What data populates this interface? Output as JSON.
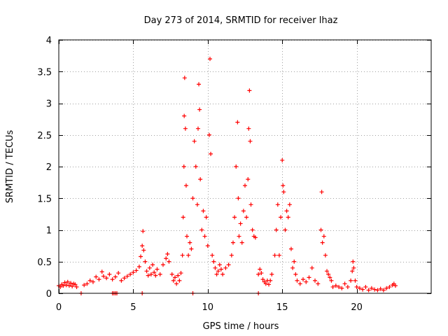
{
  "chart_data": {
    "type": "scatter",
    "title": "Day 273 of 2014, SRMTID for receiver lhaz",
    "xlabel": "GPS time / hours",
    "ylabel": "SRMTID / TECUs",
    "xlim": [
      0,
      25
    ],
    "ylim": [
      0,
      4
    ],
    "xticks": [
      0,
      5,
      10,
      15,
      20
    ],
    "xtick_labels": [
      "0",
      "5",
      "10",
      "15",
      "20"
    ],
    "yticks": [
      0,
      0.5,
      1,
      1.5,
      2,
      2.5,
      3,
      3.5,
      4
    ],
    "ytick_labels": [
      "0",
      "0.5",
      "1",
      "1.5",
      "2",
      "2.5",
      "3",
      "3.5",
      "4"
    ],
    "grid": true,
    "legend": "none",
    "marker": "+",
    "series": [
      {
        "name": "SRMTID",
        "color": "#ff0000",
        "segments": [
          {
            "note": "continuous trace (hours, TECU)",
            "points": [
              [
                0.0,
                0.12
              ],
              [
                0.1,
                0.1
              ],
              [
                0.2,
                0.14
              ],
              [
                0.3,
                0.12
              ],
              [
                0.4,
                0.17
              ],
              [
                0.5,
                0.13
              ],
              [
                0.6,
                0.18
              ],
              [
                0.7,
                0.12
              ],
              [
                0.8,
                0.16
              ],
              [
                0.9,
                0.11
              ],
              [
                1.0,
                0.15
              ],
              [
                1.1,
                0.14
              ],
              [
                1.2,
                0.1
              ],
              [
                1.7,
                0.13
              ],
              [
                1.9,
                0.15
              ],
              [
                2.1,
                0.2
              ],
              [
                2.3,
                0.18
              ],
              [
                2.5,
                0.26
              ],
              [
                2.7,
                0.22
              ],
              [
                2.9,
                0.34
              ],
              [
                3.0,
                0.27
              ],
              [
                3.2,
                0.24
              ],
              [
                3.4,
                0.3
              ],
              [
                3.6,
                0.22
              ],
              [
                3.8,
                0.26
              ],
              [
                4.0,
                0.32
              ],
              [
                4.2,
                0.2
              ],
              [
                4.4,
                0.24
              ],
              [
                4.6,
                0.27
              ],
              [
                4.8,
                0.3
              ],
              [
                5.0,
                0.33
              ],
              [
                5.2,
                0.36
              ],
              [
                5.4,
                0.42
              ],
              [
                5.5,
                0.58
              ],
              [
                5.6,
                0.75
              ],
              [
                5.65,
                0.98
              ],
              [
                5.7,
                0.68
              ],
              [
                5.8,
                0.5
              ],
              [
                5.9,
                0.35
              ],
              [
                6.0,
                0.28
              ],
              [
                6.1,
                0.4
              ],
              [
                6.2,
                0.3
              ],
              [
                6.3,
                0.45
              ],
              [
                6.4,
                0.33
              ],
              [
                6.5,
                0.28
              ],
              [
                6.6,
                0.38
              ],
              [
                6.8,
                0.3
              ],
              [
                7.0,
                0.45
              ],
              [
                7.2,
                0.55
              ],
              [
                7.3,
                0.62
              ],
              [
                7.4,
                0.5
              ],
              [
                7.6,
                0.3
              ],
              [
                7.7,
                0.2
              ],
              [
                7.8,
                0.25
              ],
              [
                7.9,
                0.15
              ],
              [
                8.0,
                0.28
              ],
              [
                8.1,
                0.2
              ],
              [
                8.2,
                0.32
              ],
              [
                8.3,
                0.6
              ],
              [
                8.35,
                1.2
              ],
              [
                8.4,
                2.0
              ],
              [
                8.42,
                2.8
              ],
              [
                8.45,
                3.4
              ],
              [
                8.5,
                2.6
              ],
              [
                8.55,
                1.7
              ],
              [
                8.6,
                0.9
              ],
              [
                8.7,
                0.6
              ],
              [
                8.8,
                0.8
              ],
              [
                8.9,
                0.7
              ],
              [
                9.0,
                1.5
              ],
              [
                9.1,
                2.4
              ],
              [
                9.2,
                2.0
              ],
              [
                9.3,
                1.4
              ],
              [
                9.35,
                2.6
              ],
              [
                9.4,
                3.3
              ],
              [
                9.45,
                2.9
              ],
              [
                9.5,
                1.8
              ],
              [
                9.6,
                1.0
              ],
              [
                9.7,
                1.3
              ],
              [
                9.8,
                0.9
              ],
              [
                9.9,
                1.2
              ],
              [
                10.0,
                0.75
              ],
              [
                10.1,
                2.5
              ],
              [
                10.15,
                3.7
              ],
              [
                10.2,
                2.2
              ],
              [
                10.3,
                0.6
              ],
              [
                10.4,
                0.5
              ],
              [
                10.5,
                0.4
              ],
              [
                10.6,
                0.3
              ],
              [
                10.7,
                0.35
              ],
              [
                10.8,
                0.45
              ],
              [
                10.9,
                0.38
              ],
              [
                11.0,
                0.3
              ],
              [
                11.2,
                0.4
              ],
              [
                11.4,
                0.45
              ],
              [
                11.6,
                0.6
              ],
              [
                11.7,
                0.8
              ],
              [
                11.8,
                1.2
              ],
              [
                11.9,
                2.0
              ],
              [
                12.0,
                2.7
              ],
              [
                12.05,
                1.5
              ],
              [
                12.1,
                0.9
              ],
              [
                12.2,
                1.1
              ],
              [
                12.3,
                0.8
              ],
              [
                12.4,
                1.3
              ],
              [
                12.5,
                1.7
              ],
              [
                12.6,
                1.2
              ],
              [
                12.7,
                1.8
              ],
              [
                12.75,
                2.6
              ],
              [
                12.8,
                3.2
              ],
              [
                12.85,
                2.4
              ],
              [
                12.9,
                1.4
              ],
              [
                13.0,
                1.0
              ],
              [
                13.1,
                0.9
              ],
              [
                13.2,
                0.88
              ],
              [
                13.4,
                0.3
              ],
              [
                13.5,
                0.38
              ],
              [
                13.6,
                0.32
              ],
              [
                13.7,
                0.22
              ],
              [
                13.8,
                0.18
              ],
              [
                13.9,
                0.15
              ],
              [
                14.0,
                0.2
              ],
              [
                14.1,
                0.14
              ],
              [
                14.2,
                0.2
              ],
              [
                14.3,
                0.3
              ],
              [
                14.5,
                0.6
              ],
              [
                14.6,
                1.0
              ],
              [
                14.7,
                1.4
              ],
              [
                14.8,
                0.6
              ],
              [
                14.9,
                1.2
              ],
              [
                15.0,
                2.1
              ],
              [
                15.05,
                1.7
              ],
              [
                15.1,
                1.6
              ],
              [
                15.2,
                1.0
              ],
              [
                15.3,
                1.3
              ],
              [
                15.4,
                1.2
              ],
              [
                15.5,
                1.4
              ],
              [
                15.6,
                0.7
              ],
              [
                15.7,
                0.4
              ],
              [
                15.8,
                0.5
              ],
              [
                15.9,
                0.3
              ],
              [
                16.0,
                0.2
              ],
              [
                16.2,
                0.15
              ],
              [
                16.4,
                0.22
              ],
              [
                16.6,
                0.18
              ],
              [
                16.8,
                0.25
              ],
              [
                17.0,
                0.4
              ],
              [
                17.2,
                0.2
              ],
              [
                17.4,
                0.15
              ],
              [
                17.6,
                1.0
              ],
              [
                17.65,
                1.6
              ],
              [
                17.7,
                0.8
              ],
              [
                17.8,
                0.9
              ],
              [
                17.9,
                0.6
              ],
              [
                18.0,
                0.35
              ],
              [
                18.1,
                0.3
              ],
              [
                18.2,
                0.25
              ],
              [
                18.3,
                0.2
              ],
              [
                18.4,
                0.1
              ],
              [
                18.6,
                0.12
              ],
              [
                18.8,
                0.1
              ],
              [
                19.0,
                0.08
              ],
              [
                19.2,
                0.15
              ],
              [
                19.4,
                0.1
              ],
              [
                19.6,
                0.2
              ],
              [
                19.7,
                0.35
              ],
              [
                19.75,
                0.5
              ],
              [
                19.8,
                0.4
              ],
              [
                19.9,
                0.2
              ],
              [
                20.0,
                0.1
              ],
              [
                20.2,
                0.08
              ],
              [
                20.4,
                0.06
              ],
              [
                20.6,
                0.1
              ],
              [
                20.8,
                0.05
              ],
              [
                21.0,
                0.08
              ],
              [
                21.2,
                0.06
              ],
              [
                21.4,
                0.05
              ],
              [
                21.6,
                0.07
              ],
              [
                21.8,
                0.05
              ],
              [
                22.0,
                0.08
              ],
              [
                22.2,
                0.1
              ],
              [
                22.4,
                0.13
              ],
              [
                22.5,
                0.15
              ],
              [
                22.6,
                0.12
              ]
            ]
          },
          {
            "note": "isolated points along the zero line",
            "points": [
              [
                1.5,
                0.0
              ],
              [
                3.6,
                0.0
              ],
              [
                3.7,
                0.0
              ],
              [
                3.8,
                0.0
              ],
              [
                3.9,
                0.0
              ],
              [
                5.6,
                0.0
              ],
              [
                9.0,
                0.0
              ],
              [
                13.4,
                0.0
              ]
            ]
          }
        ]
      }
    ]
  }
}
